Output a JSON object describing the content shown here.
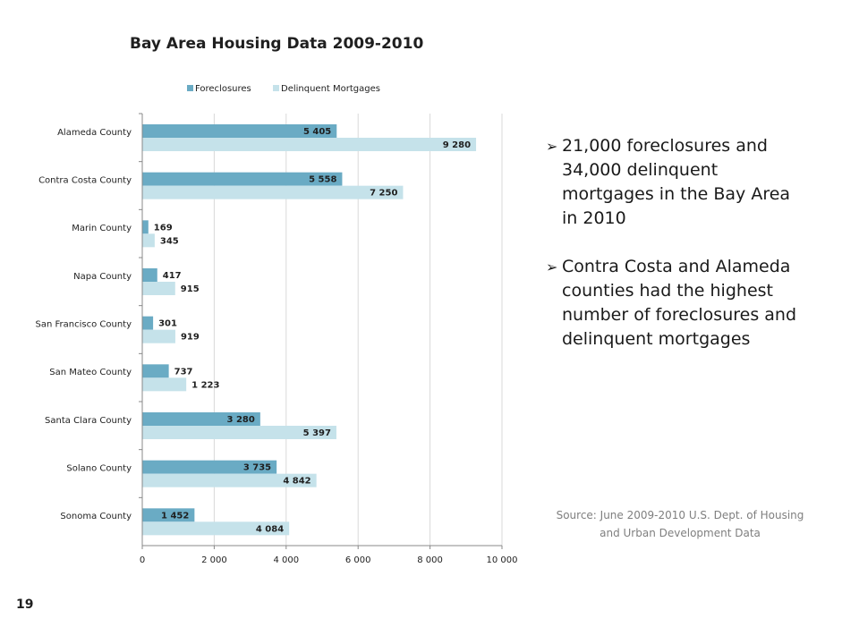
{
  "slide": {
    "page_number": "19",
    "bullets": [
      "21,000 foreclosures and 34,000 delinquent mortgages in the Bay Area in 2010",
      "Contra Costa and Alameda counties had the highest number of foreclosures and delinquent mortgages"
    ],
    "source": "Source:  June 2009-2010 U.S. Dept. of Housing and Urban Development Data",
    "bullet_icon": "arrow-bullet-icon"
  },
  "chart_data": {
    "type": "bar",
    "orientation": "horizontal",
    "title": "Bay Area Housing Data 2009-2010",
    "categories": [
      "Alameda County",
      "Contra Costa County",
      "Marin County",
      "Napa County",
      "San Francisco County",
      "San Mateo County",
      "Santa Clara County",
      "Solano County",
      "Sonoma County"
    ],
    "series": [
      {
        "name": "Foreclosures",
        "values": [
          5405,
          5558,
          169,
          417,
          301,
          737,
          3280,
          3735,
          1452
        ],
        "labels": [
          "5 405",
          "5 558",
          "169",
          "417",
          "301",
          "737",
          "3 280",
          "3 735",
          "1 452"
        ],
        "color": "#6aabc4"
      },
      {
        "name": "Delinquent Mortgages",
        "values": [
          9280,
          7250,
          345,
          915,
          919,
          1223,
          5397,
          4842,
          4084
        ],
        "labels": [
          "9 280",
          "7 250",
          "345",
          "915",
          "919",
          "1 223",
          "5 397",
          "4 842",
          "4 084"
        ],
        "color": "#c5e2ea"
      }
    ],
    "xlim": [
      0,
      10000
    ],
    "xticks": [
      0,
      2000,
      4000,
      6000,
      8000,
      10000
    ],
    "xtick_labels": [
      "0",
      "2 000",
      "4 000",
      "6 000",
      "8 000",
      "10 000"
    ],
    "grid": true,
    "legend_position": "top"
  }
}
